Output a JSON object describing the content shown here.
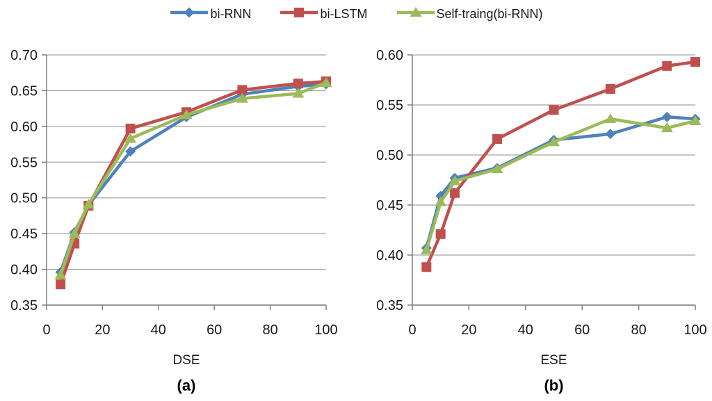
{
  "figure": {
    "background": "#ffffff",
    "grid_color": "#a3a3a3",
    "axis_color": "#7f7f7f",
    "text_color": "#1a1a1a"
  },
  "legend": {
    "items": [
      {
        "label": "bi-RNN",
        "color": "#4F81BD",
        "marker": "diamond"
      },
      {
        "label": "bi-LSTM",
        "color": "#C0504D",
        "marker": "square"
      },
      {
        "label": "Self-traing(bi-RNN)",
        "color": "#9BBB59",
        "marker": "triangle"
      }
    ]
  },
  "chart_data": [
    {
      "type": "line",
      "title": "",
      "xlabel": "DSE",
      "caption": "(a)",
      "x": [
        5,
        10,
        15,
        30,
        50,
        70,
        90,
        100
      ],
      "xlim": [
        0,
        100
      ],
      "ylim": [
        0.35,
        0.7
      ],
      "xticks": [
        0,
        20,
        40,
        60,
        80,
        100
      ],
      "yticks": [
        "0.70",
        "0.65",
        "0.60",
        "0.55",
        "0.50",
        "0.45",
        "0.40",
        "0.35"
      ],
      "grid": true,
      "legend_position": "top-center-shared",
      "series": [
        {
          "name": "bi-RNN",
          "color": "#4F81BD",
          "marker": "diamond",
          "values": [
            0.396,
            0.452,
            0.49,
            0.565,
            0.613,
            0.645,
            0.656,
            0.659
          ]
        },
        {
          "name": "bi-LSTM",
          "color": "#C0504D",
          "marker": "square",
          "values": [
            0.379,
            0.436,
            0.489,
            0.597,
            0.62,
            0.651,
            0.66,
            0.663
          ]
        },
        {
          "name": "Self-traing(bi-RNN)",
          "color": "#9BBB59",
          "marker": "triangle",
          "values": [
            0.392,
            0.45,
            0.491,
            0.583,
            0.616,
            0.639,
            0.646,
            0.661
          ]
        }
      ]
    },
    {
      "type": "line",
      "title": "",
      "xlabel": "ESE",
      "caption": "(b)",
      "x": [
        5,
        10,
        15,
        30,
        50,
        70,
        90,
        100
      ],
      "xlim": [
        0,
        100
      ],
      "ylim": [
        0.35,
        0.6
      ],
      "xticks": [
        0,
        20,
        40,
        60,
        80,
        100
      ],
      "yticks": [
        "0.60",
        "0.55",
        "0.50",
        "0.45",
        "0.40",
        "0.35"
      ],
      "grid": true,
      "legend_position": "top-center-shared",
      "series": [
        {
          "name": "bi-RNN",
          "color": "#4F81BD",
          "marker": "diamond",
          "values": [
            0.407,
            0.459,
            0.477,
            0.487,
            0.515,
            0.521,
            0.538,
            0.536
          ]
        },
        {
          "name": "bi-LSTM",
          "color": "#C0504D",
          "marker": "square",
          "values": [
            0.388,
            0.421,
            0.462,
            0.516,
            0.545,
            0.566,
            0.589,
            0.593
          ]
        },
        {
          "name": "Self-traing(bi-RNN)",
          "color": "#9BBB59",
          "marker": "triangle",
          "values": [
            0.405,
            0.453,
            0.474,
            0.486,
            0.513,
            0.536,
            0.527,
            0.534
          ]
        }
      ]
    }
  ]
}
